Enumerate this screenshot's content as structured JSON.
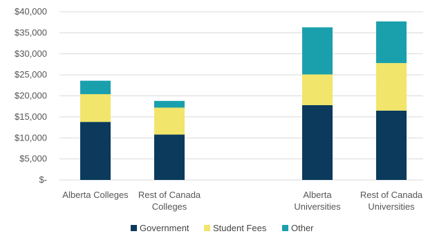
{
  "chart_data": {
    "type": "bar",
    "stacked": true,
    "categories": [
      [
        "Alberta Colleges"
      ],
      [
        "Rest of Canada",
        "Colleges"
      ],
      [
        "Alberta",
        "Universities"
      ],
      [
        "Rest of Canada",
        "Universities"
      ]
    ],
    "category_gap_after_index": 1,
    "series": [
      {
        "name": "Government",
        "color": "#0b3a5c",
        "values": [
          13800,
          10800,
          17800,
          16500
        ]
      },
      {
        "name": "Student Fees",
        "color": "#f1e56b",
        "values": [
          6600,
          6400,
          7300,
          11300
        ]
      },
      {
        "name": "Other",
        "color": "#1aa0ad",
        "values": [
          3200,
          1600,
          11200,
          9900
        ]
      }
    ],
    "ylim": [
      0,
      40000
    ],
    "yticks": [
      0,
      5000,
      10000,
      15000,
      20000,
      25000,
      30000,
      35000,
      40000
    ],
    "ytick_labels": [
      "$-",
      "$5,000",
      "$10,000",
      "$15,000",
      "$20,000",
      "$25,000",
      "$30,000",
      "$35,000",
      "$40,000"
    ],
    "grid": true,
    "legend_position": "bottom",
    "title": "",
    "xlabel": "",
    "ylabel": ""
  }
}
